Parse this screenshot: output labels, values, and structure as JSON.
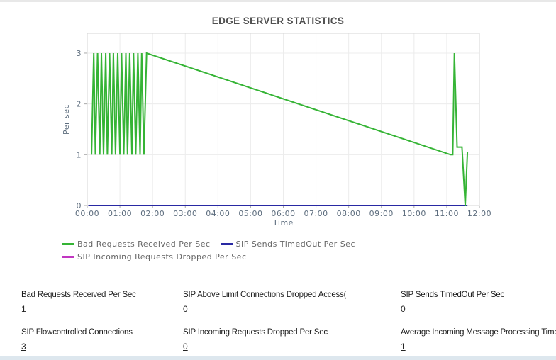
{
  "chart_data": {
    "type": "line",
    "title": "EDGE SERVER STATISTICS",
    "xlabel": "Time",
    "ylabel": "Per sec",
    "x_unit": "minutes_since_00:00",
    "xlim": [
      0,
      720
    ],
    "ylim": [
      0,
      3.39
    ],
    "grid": true,
    "legend_position": "bottom-left",
    "x_tick_minutes": [
      0,
      60,
      120,
      180,
      240,
      300,
      360,
      420,
      480,
      540,
      600,
      660,
      720
    ],
    "x_tick_labels": [
      "00:00",
      "01:00",
      "02:00",
      "03:00",
      "04:00",
      "05:00",
      "06:00",
      "07:00",
      "08:00",
      "09:00",
      "10:00",
      "11:00",
      "12:00"
    ],
    "y_ticks": [
      0,
      1,
      2,
      3
    ],
    "series": [
      {
        "name": "SIP Incoming Requests Dropped Per Sec",
        "color": "#c136c1",
        "points": [
          [
            2,
            0
          ],
          [
            698,
            0
          ]
        ]
      },
      {
        "name": "SIP Sends TimedOut Per Sec",
        "color": "#2929a3",
        "points": [
          [
            2,
            0
          ],
          [
            698,
            0
          ]
        ]
      },
      {
        "name": "Bad Requests Received Per Sec",
        "color": "#35b435",
        "points": [
          [
            8,
            1
          ],
          [
            12,
            3
          ],
          [
            15,
            1
          ],
          [
            19,
            3
          ],
          [
            23,
            1
          ],
          [
            26,
            3
          ],
          [
            30,
            1
          ],
          [
            34,
            3
          ],
          [
            37,
            1
          ],
          [
            41,
            3
          ],
          [
            45,
            1
          ],
          [
            48,
            3
          ],
          [
            52,
            1
          ],
          [
            56,
            3
          ],
          [
            60,
            1
          ],
          [
            63,
            3
          ],
          [
            67,
            1
          ],
          [
            71,
            3
          ],
          [
            74,
            1
          ],
          [
            78,
            3
          ],
          [
            82,
            1
          ],
          [
            85,
            3
          ],
          [
            89,
            1
          ],
          [
            93,
            3
          ],
          [
            97,
            1
          ],
          [
            100,
            3
          ],
          [
            104,
            1
          ],
          [
            109,
            3
          ],
          [
            667,
            1
          ],
          [
            671,
            1
          ],
          [
            674,
            3
          ],
          [
            679,
            1.15
          ],
          [
            688,
            1.15
          ],
          [
            694,
            0
          ],
          [
            698,
            1.05
          ]
        ]
      }
    ],
    "legend_order": [
      "Bad Requests Received Per Sec",
      "SIP Sends TimedOut Per Sec",
      "SIP Incoming Requests Dropped Per Sec"
    ],
    "colors": {
      "grid": "#ececec",
      "plot_border": "#d6d6d6",
      "axis_text": "#5d6d7e",
      "tick_mark": "#a9a9a9"
    }
  },
  "stats": {
    "items": [
      {
        "label": "Bad Requests Received Per Sec",
        "value": "1"
      },
      {
        "label": "SIP Above Limit Connections Dropped Access(Proxies ...",
        "value": "0"
      },
      {
        "label": "SIP Sends TimedOut Per Sec",
        "value": "0"
      },
      {
        "label": "SIP Flowcontrolled Connections",
        "value": "3"
      },
      {
        "label": "SIP Incoming Requests Dropped Per Sec",
        "value": "0"
      },
      {
        "label": "Average Incoming Message Processing Time",
        "value": "1"
      }
    ]
  }
}
